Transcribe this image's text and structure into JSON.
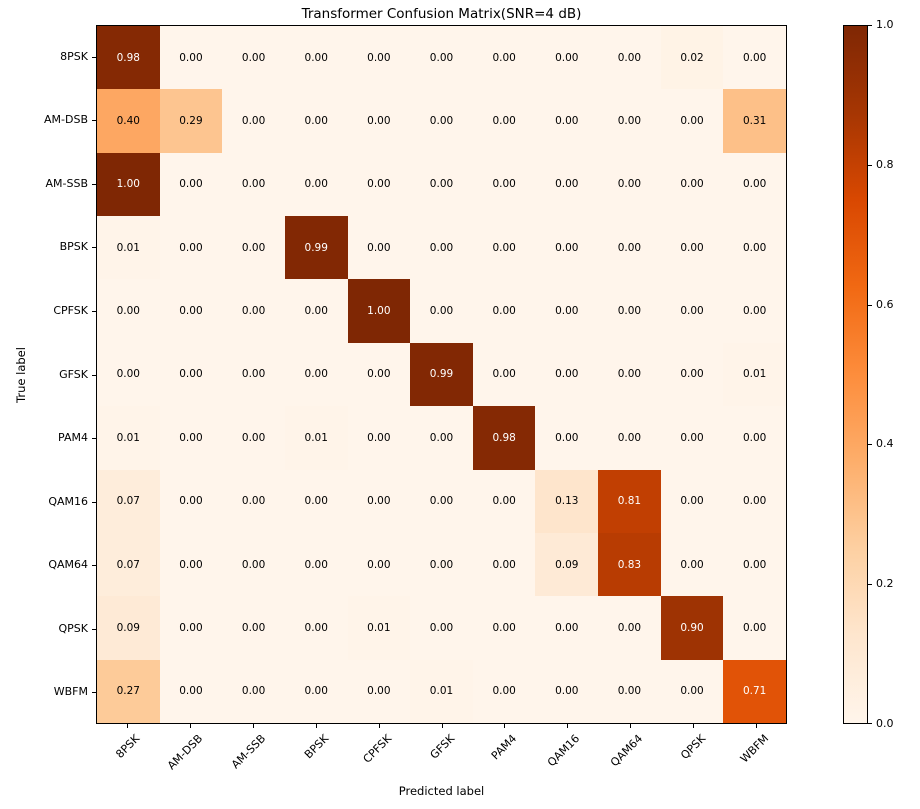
{
  "chart_data": {
    "type": "heatmap",
    "title": "Transformer Confusion Matrix(SNR=4 dB)",
    "xlabel": "Predicted label",
    "ylabel": "True label",
    "x_categories": [
      "8PSK",
      "AM-DSB",
      "AM-SSB",
      "BPSK",
      "CPFSK",
      "GFSK",
      "PAM4",
      "QAM16",
      "QAM64",
      "QPSK",
      "WBFM"
    ],
    "y_categories": [
      "8PSK",
      "AM-DSB",
      "AM-SSB",
      "BPSK",
      "CPFSK",
      "GFSK",
      "PAM4",
      "QAM16",
      "QAM64",
      "QPSK",
      "WBFM"
    ],
    "matrix": [
      [
        0.98,
        0.0,
        0.0,
        0.0,
        0.0,
        0.0,
        0.0,
        0.0,
        0.0,
        0.02,
        0.0
      ],
      [
        0.4,
        0.29,
        0.0,
        0.0,
        0.0,
        0.0,
        0.0,
        0.0,
        0.0,
        0.0,
        0.31
      ],
      [
        1.0,
        0.0,
        0.0,
        0.0,
        0.0,
        0.0,
        0.0,
        0.0,
        0.0,
        0.0,
        0.0
      ],
      [
        0.01,
        0.0,
        0.0,
        0.99,
        0.0,
        0.0,
        0.0,
        0.0,
        0.0,
        0.0,
        0.0
      ],
      [
        0.0,
        0.0,
        0.0,
        0.0,
        1.0,
        0.0,
        0.0,
        0.0,
        0.0,
        0.0,
        0.0
      ],
      [
        0.0,
        0.0,
        0.0,
        0.0,
        0.0,
        0.99,
        0.0,
        0.0,
        0.0,
        0.0,
        0.01
      ],
      [
        0.01,
        0.0,
        0.0,
        0.01,
        0.0,
        0.0,
        0.98,
        0.0,
        0.0,
        0.0,
        0.0
      ],
      [
        0.07,
        0.0,
        0.0,
        0.0,
        0.0,
        0.0,
        0.0,
        0.13,
        0.81,
        0.0,
        0.0
      ],
      [
        0.07,
        0.0,
        0.0,
        0.0,
        0.0,
        0.0,
        0.0,
        0.09,
        0.83,
        0.0,
        0.0
      ],
      [
        0.09,
        0.0,
        0.0,
        0.0,
        0.01,
        0.0,
        0.0,
        0.0,
        0.0,
        0.9,
        0.0
      ],
      [
        0.27,
        0.0,
        0.0,
        0.0,
        0.0,
        0.01,
        0.0,
        0.0,
        0.0,
        0.0,
        0.71
      ]
    ],
    "value_format_decimals": 2,
    "value_range": [
      0.0,
      1.0
    ],
    "grid": false,
    "colormap": {
      "name": "Oranges",
      "stops": [
        {
          "t": 0.0,
          "color": "#fff5eb"
        },
        {
          "t": 0.125,
          "color": "#fee6ce"
        },
        {
          "t": 0.25,
          "color": "#fdd0a2"
        },
        {
          "t": 0.375,
          "color": "#fdae6b"
        },
        {
          "t": 0.5,
          "color": "#fd8d3c"
        },
        {
          "t": 0.625,
          "color": "#f16913"
        },
        {
          "t": 0.75,
          "color": "#d94801"
        },
        {
          "t": 0.875,
          "color": "#a63603"
        },
        {
          "t": 1.0,
          "color": "#7f2704"
        }
      ]
    },
    "text_color_threshold": 0.5,
    "cell_text_dark": "#000000",
    "cell_text_light": "#ffffff",
    "colorbar": {
      "min": 0.0,
      "max": 1.0,
      "tick_values": [
        0.0,
        0.2,
        0.4,
        0.6,
        0.8,
        1.0
      ],
      "tick_labels": [
        "0.0",
        "0.2",
        "0.4",
        "0.6",
        "0.8",
        "1.0"
      ],
      "position": "right"
    }
  }
}
